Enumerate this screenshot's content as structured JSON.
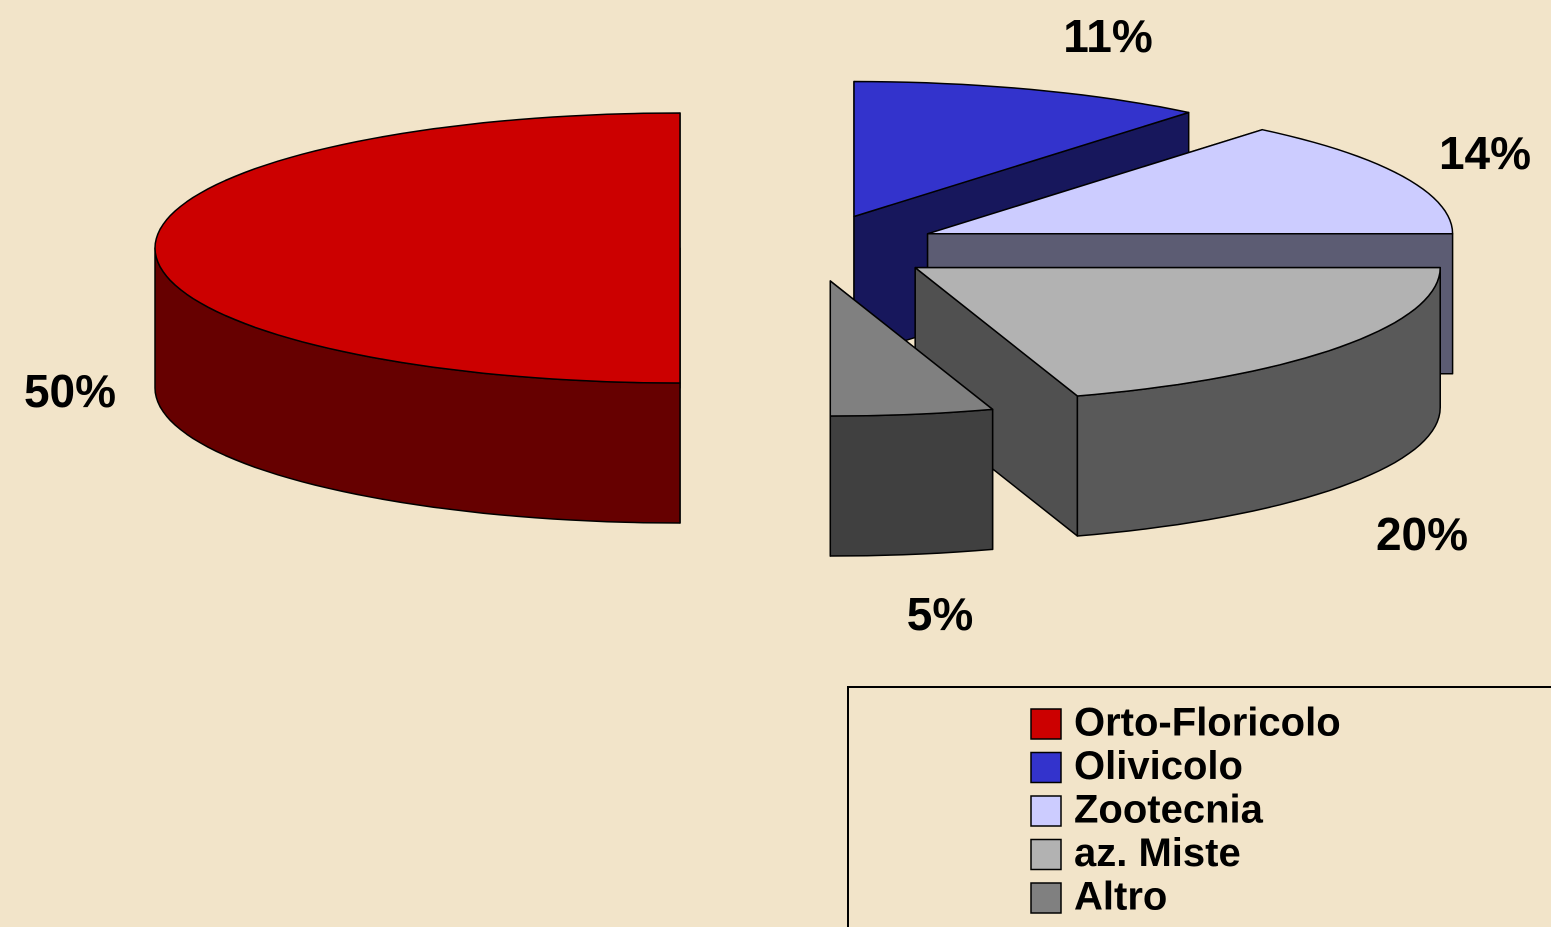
{
  "chart_data": {
    "type": "pie3d",
    "categories": [
      "Orto-Floricolo",
      "Olivicolo",
      "Zootecnia",
      "az. Miste",
      "Altro"
    ],
    "values": [
      50,
      11,
      14,
      20,
      5
    ],
    "value_labels": [
      "50%",
      "11%",
      "14%",
      "20%",
      "5%"
    ],
    "colors": [
      "#cc0000",
      "#3333cc",
      "#ccccff",
      "#b2b2b2",
      "#808080"
    ],
    "legend": "bottom-right"
  }
}
